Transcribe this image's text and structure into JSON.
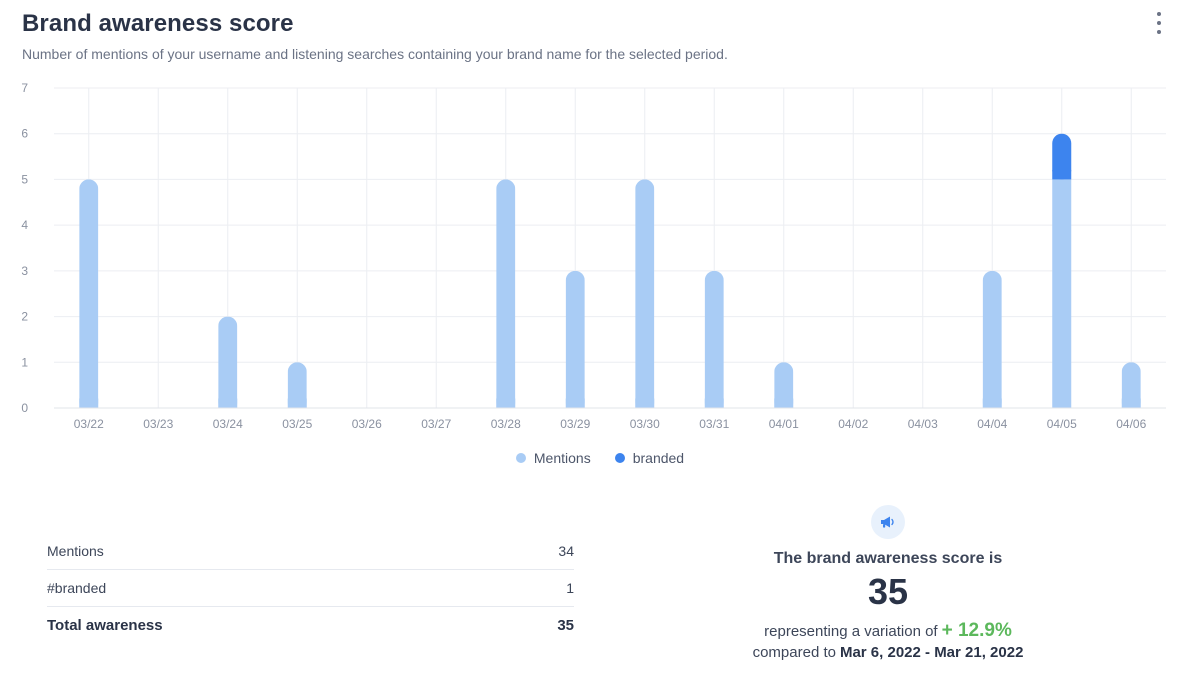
{
  "header": {
    "title": "Brand awareness score",
    "subtitle": "Number of mentions of your username and listening searches containing your brand name for the selected period."
  },
  "chart_data": {
    "type": "bar",
    "stacked": true,
    "categories": [
      "03/22",
      "03/23",
      "03/24",
      "03/25",
      "03/26",
      "03/27",
      "03/28",
      "03/29",
      "03/30",
      "03/31",
      "04/01",
      "04/02",
      "04/03",
      "04/04",
      "04/05",
      "04/06"
    ],
    "series": [
      {
        "name": "Mentions",
        "color": "#a9ccf5",
        "values": [
          5,
          0,
          2,
          1,
          0,
          0,
          5,
          3,
          5,
          3,
          1,
          0,
          0,
          3,
          5,
          1
        ]
      },
      {
        "name": "branded",
        "color": "#3d84ee",
        "values": [
          0,
          0,
          0,
          0,
          0,
          0,
          0,
          0,
          0,
          0,
          0,
          0,
          0,
          0,
          1,
          0
        ]
      }
    ],
    "ylim": [
      0,
      7
    ],
    "yticks": [
      0,
      1,
      2,
      3,
      4,
      5,
      6,
      7
    ],
    "grid": true,
    "legend": "bottom-center"
  },
  "stats": {
    "rows": [
      {
        "label": "Mentions",
        "value": "34"
      },
      {
        "label": "#branded",
        "value": "1"
      }
    ],
    "total": {
      "label": "Total awareness",
      "value": "35"
    }
  },
  "score": {
    "icon": "megaphone-icon",
    "heading": "The brand awareness score is",
    "value": "35",
    "variation_prefix": "representing a variation of",
    "variation": "+ 12.9%",
    "compared_prefix": "compared to",
    "compared_range": "Mar 6, 2022 - Mar 21, 2022",
    "accent": "#5cb85c"
  }
}
